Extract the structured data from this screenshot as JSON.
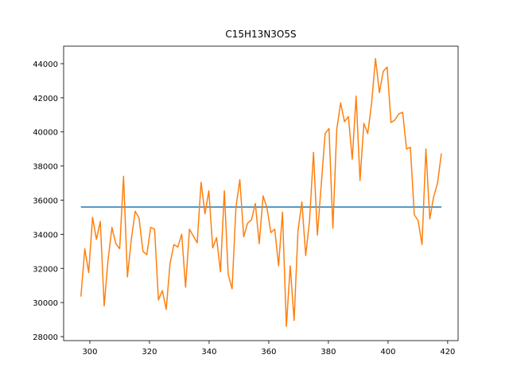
{
  "chart_data": {
    "type": "line",
    "title": "C15H13N3O5S",
    "xlim": [
      291.2,
      423.5
    ],
    "ylim": [
      27767,
      45026
    ],
    "xticks": [
      300,
      320,
      340,
      360,
      380,
      400,
      420
    ],
    "yticks": [
      28000,
      30000,
      32000,
      34000,
      36000,
      38000,
      40000,
      42000,
      44000
    ],
    "series": [
      {
        "color": "#1f77b4",
        "x": [
          297.0,
          417.9
        ],
        "values": [
          35600,
          35600
        ]
      },
      {
        "color": "#ff7f0e",
        "x": [
          297.0,
          298.3,
          299.6,
          300.9,
          302.2,
          303.5,
          304.8,
          306.1,
          307.4,
          308.7,
          310.0,
          311.3,
          312.6,
          313.9,
          315.2,
          316.5,
          317.8,
          319.1,
          320.4,
          321.7,
          323.0,
          324.3,
          325.6,
          326.9,
          328.2,
          329.5,
          330.8,
          332.1,
          333.4,
          334.7,
          336.0,
          337.3,
          338.6,
          339.9,
          341.2,
          342.5,
          343.8,
          345.1,
          346.4,
          347.7,
          349.0,
          350.3,
          351.6,
          352.9,
          354.2,
          355.5,
          356.8,
          358.1,
          359.4,
          360.7,
          362.0,
          363.3,
          364.6,
          365.9,
          367.2,
          368.5,
          369.8,
          371.1,
          372.4,
          373.7,
          375.0,
          376.3,
          377.6,
          378.9,
          380.2,
          381.5,
          382.8,
          384.1,
          385.4,
          386.7,
          388.0,
          389.3,
          390.6,
          391.9,
          393.2,
          394.5,
          395.8,
          397.1,
          398.4,
          399.7,
          401.0,
          402.3,
          403.6,
          404.9,
          406.2,
          407.5,
          408.8,
          410.1,
          411.4,
          412.7,
          414.0,
          415.3,
          416.6,
          417.9
        ],
        "values": [
          30350,
          33150,
          31750,
          35000,
          33700,
          34750,
          29800,
          32500,
          34400,
          33450,
          33150,
          37400,
          31500,
          33700,
          35350,
          34950,
          33000,
          32800,
          34400,
          34300,
          30150,
          30700,
          29600,
          32300,
          33400,
          33250,
          34000,
          30900,
          34300,
          33900,
          33500,
          37050,
          35200,
          36550,
          33200,
          33800,
          31800,
          36550,
          31650,
          30800,
          35600,
          37200,
          33850,
          34650,
          34850,
          35800,
          33450,
          36250,
          35550,
          34100,
          34300,
          32150,
          35300,
          28600,
          32150,
          28950,
          34200,
          35900,
          32750,
          34850,
          38800,
          33950,
          36900,
          39900,
          40200,
          34350,
          40150,
          41700,
          40600,
          40900,
          38400,
          42100,
          37150,
          40500,
          39900,
          41700,
          44300,
          42300,
          43550,
          43800,
          40550,
          40700,
          41050,
          41150,
          39000,
          39100,
          35150,
          34800,
          33400,
          39000,
          34900,
          36200,
          37000,
          38750
        ]
      }
    ]
  }
}
